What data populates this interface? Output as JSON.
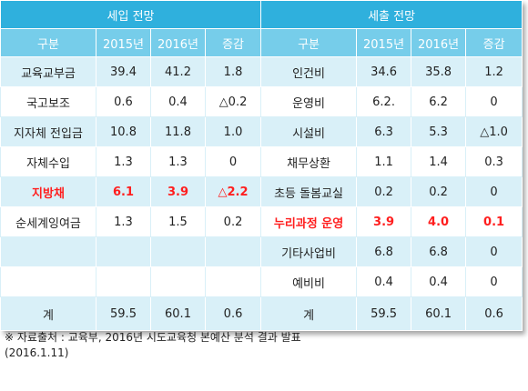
{
  "header": {
    "income_title": "세입 전망",
    "expense_title": "세출 전망"
  },
  "columns": {
    "income": [
      "구분",
      "2015년",
      "2016년",
      "증감"
    ],
    "expense": [
      "구분",
      "2015년",
      "2016년",
      "증감"
    ]
  },
  "rows": [
    {
      "income": [
        "교육교부금",
        "39.4",
        "41.2",
        "1.8"
      ],
      "expense": [
        "인건비",
        "34.6",
        "35.8",
        "1.2"
      ],
      "income_red": false,
      "expense_red": false
    },
    {
      "income": [
        "국고보조",
        "0.6",
        "0.4",
        "△0.2"
      ],
      "expense": [
        "운영비",
        "6.2.",
        "6.2",
        "0"
      ],
      "income_red": false,
      "expense_red": false
    },
    {
      "income": [
        "지자체 전입금",
        "10.8",
        "11.8",
        "1.0"
      ],
      "expense": [
        "시설비",
        "6.3",
        "5.3",
        "△1.0"
      ],
      "income_red": false,
      "expense_red": false
    },
    {
      "income": [
        "자체수입",
        "1.3",
        "1.3",
        "0"
      ],
      "expense": [
        "채무상환",
        "1.1",
        "1.4",
        "0.3"
      ],
      "income_red": false,
      "expense_red": false
    },
    {
      "income": [
        "지방채",
        "6.1",
        "3.9",
        "△2.2"
      ],
      "expense": [
        "초등 돌봄교실",
        "0.2",
        "0.2",
        "0"
      ],
      "income_red": true,
      "expense_red": false
    },
    {
      "income": [
        "순세계잉여금",
        "1.3",
        "1.5",
        "0.2"
      ],
      "expense": [
        "누리과정 운영",
        "3.9",
        "4.0",
        "0.1"
      ],
      "income_red": false,
      "expense_red": true
    },
    {
      "income": [
        "",
        "",
        "",
        ""
      ],
      "expense": [
        "기타사업비",
        "6.8",
        "6.8",
        "0"
      ],
      "income_red": false,
      "expense_red": false
    },
    {
      "income": [
        "",
        "",
        "",
        ""
      ],
      "expense": [
        "예비비",
        "0.4",
        "0.4",
        "0"
      ],
      "income_red": false,
      "expense_red": false
    },
    {
      "income": [
        "계",
        "59.5",
        "60.1",
        "0.6"
      ],
      "expense": [
        "계",
        "59.5",
        "60.1",
        "0.6"
      ],
      "income_red": false,
      "expense_red": false
    }
  ],
  "source": {
    "line1": "※ 자료출처 : 교육부, 2016년 시도교육청 본예산 분석 결과 발표",
    "line2": "(2016.1.11)"
  },
  "colors": {
    "header_dark": "#2fb0dd",
    "header_light": "#76cdea",
    "row_alt": "#d9f0f8",
    "highlight_red": "#ff1e1e"
  }
}
